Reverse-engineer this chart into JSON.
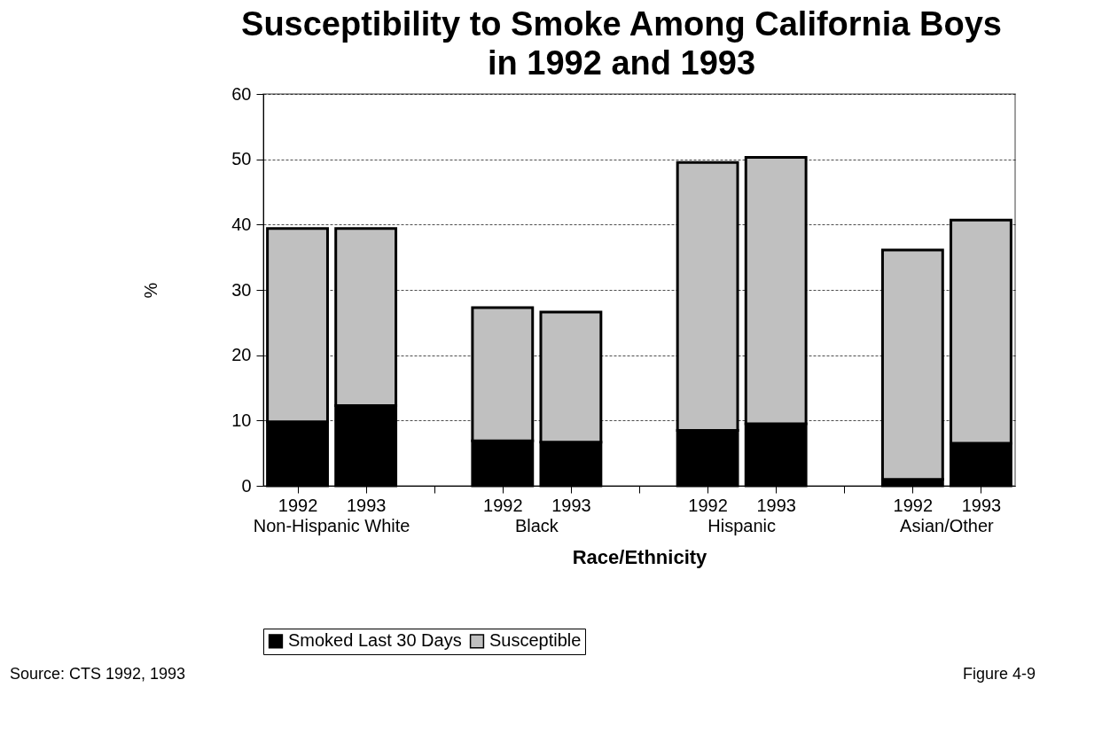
{
  "chart_data": {
    "type": "bar",
    "title": "Susceptibility to Smoke Among California Boys in 1992 and 1993",
    "xlabel": "Race/Ethnicity",
    "ylabel": "%",
    "categories": [
      "1992",
      "1993",
      "1992",
      "1993",
      "1992",
      "1993",
      "1992",
      "1993"
    ],
    "stacked": true,
    "series": [
      {
        "name": "Smoked Last 30 Days",
        "color": "#000000",
        "values": [
          9.8,
          12.3,
          6.9,
          6.7,
          8.5,
          9.5,
          1.0,
          6.5
        ]
      },
      {
        "name": "Susceptible",
        "color": "#c0c0c0",
        "values": [
          29.6,
          27.1,
          20.4,
          19.9,
          41.0,
          40.8,
          35.1,
          34.2
        ]
      }
    ],
    "ylim": [
      0,
      60
    ],
    "yticks": [
      0,
      10,
      20,
      30,
      40,
      50,
      60
    ],
    "grid": "y",
    "legend": "bottom",
    "annotations": [
      "Non-Hispanic White",
      "Black",
      "Hispanic",
      "Asian/Other",
      "Source: CTS 1992, 1993",
      "Figure 4-9"
    ]
  }
}
